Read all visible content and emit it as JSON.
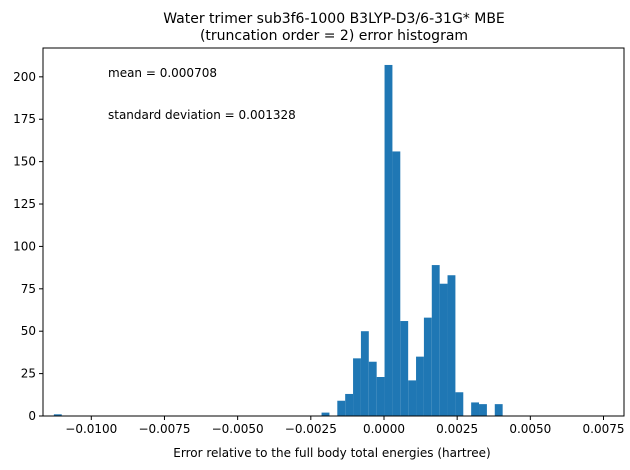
{
  "chart_data": {
    "type": "bar",
    "title": "Water trimer sub3f6-1000 B3LYP-D3/6-31G* MBE",
    "subtitle": "(truncation order = 2) error histogram",
    "xlabel": "Error relative to the full body total energies (hartree)",
    "ylabel": "",
    "xlim": [
      -0.01165,
      0.0082
    ],
    "ylim": [
      0,
      217
    ],
    "xticks": [
      -0.01,
      -0.0075,
      -0.005,
      -0.0025,
      0.0,
      0.0025,
      0.005,
      0.0075
    ],
    "xtick_labels": [
      "−0.0100",
      "−0.0075",
      "−0.0050",
      "−0.0025",
      "0.0000",
      "0.0025",
      "0.0050",
      "0.0075"
    ],
    "yticks": [
      0,
      25,
      50,
      75,
      100,
      125,
      150,
      175,
      200
    ],
    "ytick_labels": [
      "0",
      "25",
      "50",
      "75",
      "100",
      "125",
      "150",
      "175",
      "200"
    ],
    "bin_start": -0.011279,
    "bin_width": 0.000269,
    "counts": [
      1,
      0,
      0,
      0,
      0,
      0,
      0,
      0,
      0,
      0,
      0,
      0,
      0,
      0,
      0,
      0,
      0,
      0,
      0,
      0,
      0,
      0,
      0,
      0,
      0,
      0,
      0,
      0,
      0,
      0,
      0,
      0,
      0,
      0,
      2,
      0,
      9,
      13,
      34,
      50,
      32,
      23,
      207,
      156,
      56,
      21,
      35,
      58,
      89,
      78,
      83,
      14,
      0,
      8,
      7,
      0,
      7,
      0,
      0,
      0,
      0,
      0,
      0,
      0,
      0,
      0,
      0,
      0,
      0,
      0,
      0,
      0,
      0,
      0,
      1
    ],
    "bar_color": "#1f77b4",
    "grid": false,
    "annotations": [
      "mean = 0.000708",
      "standard deviation = 0.001328"
    ]
  }
}
